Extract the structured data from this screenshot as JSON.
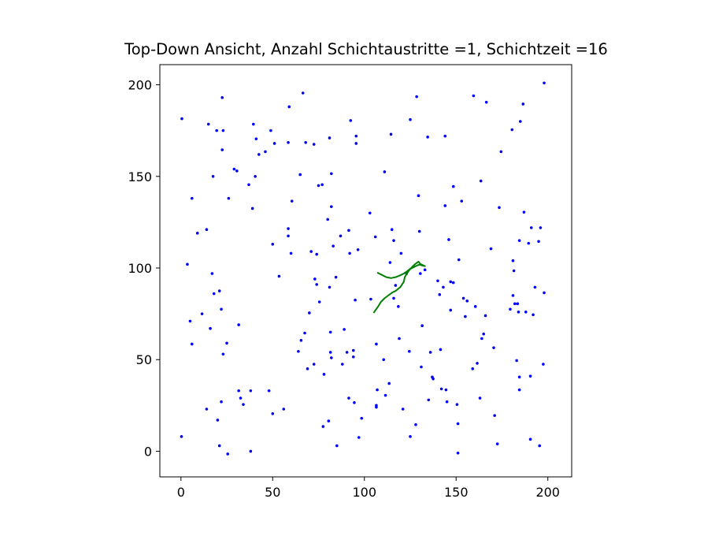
{
  "chart_data": {
    "type": "scatter",
    "title": "Top-Down Ansicht, Anzahl Schichtaustritte =1, Schichtzeit =16",
    "xlabel": "",
    "ylabel": "",
    "xlim": [
      -11.5,
      213
    ],
    "ylim": [
      -14,
      211
    ],
    "xticks": [
      0,
      50,
      100,
      150,
      200
    ],
    "yticks": [
      0,
      50,
      100,
      150,
      200
    ],
    "grid": false,
    "colors": {
      "points": "#0000ff",
      "path": "#008000"
    },
    "points": [
      [
        0.5,
        181.5
      ],
      [
        0.3,
        8
      ],
      [
        3.5,
        102
      ],
      [
        5,
        71
      ],
      [
        6,
        58.5
      ],
      [
        6,
        138
      ],
      [
        9,
        119
      ],
      [
        11.5,
        75
      ],
      [
        14,
        121
      ],
      [
        14,
        23
      ],
      [
        15,
        178.5
      ],
      [
        16,
        67
      ],
      [
        17,
        97
      ],
      [
        17.5,
        150
      ],
      [
        18,
        86
      ],
      [
        19.5,
        175
      ],
      [
        20,
        17
      ],
      [
        21,
        87.5
      ],
      [
        21,
        3
      ],
      [
        22,
        77.5
      ],
      [
        22,
        27
      ],
      [
        22.5,
        193
      ],
      [
        22.5,
        164.5
      ],
      [
        23,
        53
      ],
      [
        23,
        175
      ],
      [
        25,
        59
      ],
      [
        25.5,
        -1.5
      ],
      [
        26,
        138
      ],
      [
        29,
        154
      ],
      [
        30.5,
        153
      ],
      [
        31.5,
        69
      ],
      [
        31.5,
        33
      ],
      [
        32.5,
        29
      ],
      [
        34,
        25.5
      ],
      [
        37,
        145.5
      ],
      [
        38,
        0
      ],
      [
        38,
        33
      ],
      [
        39,
        132.5
      ],
      [
        39.5,
        178.5
      ],
      [
        40.5,
        150
      ],
      [
        41,
        170.5
      ],
      [
        42.5,
        162
      ],
      [
        46,
        163.5
      ],
      [
        48,
        33
      ],
      [
        49,
        175
      ],
      [
        50,
        113
      ],
      [
        50,
        20.5
      ],
      [
        51,
        168
      ],
      [
        53.5,
        95.5
      ],
      [
        56,
        23
      ],
      [
        58.5,
        121.5
      ],
      [
        58.5,
        117.5
      ],
      [
        58.5,
        168.5
      ],
      [
        59,
        188
      ],
      [
        60,
        108
      ],
      [
        60.5,
        136.5
      ],
      [
        64,
        54.5
      ],
      [
        65,
        151
      ],
      [
        65.5,
        60.5
      ],
      [
        66.5,
        195.5
      ],
      [
        67.5,
        64.5
      ],
      [
        68,
        168.5
      ],
      [
        69,
        45
      ],
      [
        70,
        75.5
      ],
      [
        71,
        109
      ],
      [
        72.5,
        167.5
      ],
      [
        72.5,
        47.5
      ],
      [
        73,
        94
      ],
      [
        74,
        91
      ],
      [
        74,
        107.5
      ],
      [
        75,
        145
      ],
      [
        75.5,
        81.5
      ],
      [
        77,
        145.5
      ],
      [
        77.5,
        13.5
      ],
      [
        78,
        42
      ],
      [
        80,
        126.5
      ],
      [
        80.5,
        16.5
      ],
      [
        81,
        171
      ],
      [
        81,
        89.5
      ],
      [
        81.5,
        65
      ],
      [
        81.5,
        54
      ],
      [
        82,
        51
      ],
      [
        82,
        133.5
      ],
      [
        82,
        151.5
      ],
      [
        83,
        112
      ],
      [
        84.5,
        95
      ],
      [
        85,
        3
      ],
      [
        87,
        117.5
      ],
      [
        88,
        47.5
      ],
      [
        89,
        66.5
      ],
      [
        90.5,
        54
      ],
      [
        91.5,
        29
      ],
      [
        91.5,
        120.5
      ],
      [
        92,
        108
      ],
      [
        92.5,
        180.5
      ],
      [
        94,
        55
      ],
      [
        94,
        51.5
      ],
      [
        94.5,
        26.5
      ],
      [
        95,
        82.5
      ],
      [
        95.5,
        168
      ],
      [
        95.5,
        172
      ],
      [
        96.5,
        110
      ],
      [
        97,
        7.5
      ],
      [
        98.5,
        18
      ],
      [
        103,
        130
      ],
      [
        103.5,
        83
      ],
      [
        106,
        117
      ],
      [
        106.5,
        58.5
      ],
      [
        106.5,
        25
      ],
      [
        106.5,
        24
      ],
      [
        107,
        33.5
      ],
      [
        110.5,
        50
      ],
      [
        111,
        152.5
      ],
      [
        111.5,
        30.5
      ],
      [
        113.5,
        37
      ],
      [
        114,
        103
      ],
      [
        114.5,
        173
      ],
      [
        115,
        121
      ],
      [
        116,
        115
      ],
      [
        116,
        83.5
      ],
      [
        117,
        90.5
      ],
      [
        118.5,
        79
      ],
      [
        119,
        61.5
      ],
      [
        120,
        108
      ],
      [
        121,
        23
      ],
      [
        123,
        97
      ],
      [
        124.5,
        54.5
      ],
      [
        125,
        181
      ],
      [
        125,
        8
      ],
      [
        128,
        14.5
      ],
      [
        128.5,
        193.5
      ],
      [
        129.5,
        139.5
      ],
      [
        130,
        120
      ],
      [
        130.5,
        97
      ],
      [
        131,
        46
      ],
      [
        131.5,
        68.5
      ],
      [
        133,
        99
      ],
      [
        134.5,
        171.5
      ],
      [
        135,
        28
      ],
      [
        136,
        54
      ],
      [
        137,
        40.5
      ],
      [
        137.5,
        39.5
      ],
      [
        140,
        93
      ],
      [
        141,
        85.5
      ],
      [
        141.5,
        55.5
      ],
      [
        142,
        34
      ],
      [
        143,
        89.5
      ],
      [
        144,
        134
      ],
      [
        144,
        172
      ],
      [
        144.5,
        33.5
      ],
      [
        145,
        27
      ],
      [
        146,
        115.5
      ],
      [
        147,
        92.5
      ],
      [
        147,
        77
      ],
      [
        148.5,
        144.5
      ],
      [
        148.5,
        92
      ],
      [
        150.5,
        25.5
      ],
      [
        151,
        15
      ],
      [
        151,
        -1
      ],
      [
        151.5,
        104.5
      ],
      [
        153,
        136.5
      ],
      [
        154,
        83.5
      ],
      [
        155,
        73.5
      ],
      [
        156,
        82
      ],
      [
        159,
        45
      ],
      [
        159.5,
        194
      ],
      [
        160.5,
        79
      ],
      [
        161.5,
        48
      ],
      [
        163,
        29
      ],
      [
        163.5,
        147.5
      ],
      [
        164,
        61.5
      ],
      [
        165,
        64
      ],
      [
        166,
        74
      ],
      [
        166.5,
        190.5
      ],
      [
        169,
        110.5
      ],
      [
        170.5,
        56.5
      ],
      [
        171,
        19.5
      ],
      [
        172.5,
        4
      ],
      [
        173.5,
        133
      ],
      [
        174.5,
        163.5
      ],
      [
        179.5,
        77.5
      ],
      [
        180.5,
        175.5
      ],
      [
        181,
        85
      ],
      [
        181,
        104
      ],
      [
        181.5,
        98.5
      ],
      [
        182,
        80.5
      ],
      [
        183,
        49.5
      ],
      [
        183.5,
        80.5
      ],
      [
        184,
        76
      ],
      [
        184.5,
        115
      ],
      [
        184.5,
        33.5
      ],
      [
        184.5,
        40.5
      ],
      [
        185,
        180
      ],
      [
        186.5,
        189.5
      ],
      [
        187,
        130.5
      ],
      [
        188,
        76
      ],
      [
        189.5,
        113.5
      ],
      [
        190.5,
        6.5
      ],
      [
        190.5,
        41
      ],
      [
        191,
        122
      ],
      [
        192,
        74.5
      ],
      [
        193,
        89.5
      ],
      [
        195,
        114.5
      ],
      [
        195.5,
        3
      ],
      [
        196,
        122
      ],
      [
        197.5,
        47.5
      ],
      [
        198,
        201
      ],
      [
        198,
        86.5
      ]
    ],
    "path": [
      [
        105,
        75.5
      ],
      [
        107.5,
        79
      ],
      [
        109,
        81.5
      ],
      [
        111,
        83.5
      ],
      [
        113,
        85
      ],
      [
        115,
        86.5
      ],
      [
        117,
        87.5
      ],
      [
        119.5,
        89.5
      ],
      [
        121.5,
        92.5
      ],
      [
        122,
        95
      ],
      [
        123.5,
        97.5
      ],
      [
        125,
        99.5
      ],
      [
        127,
        100.5
      ],
      [
        129,
        101.5
      ],
      [
        131,
        102
      ],
      [
        133,
        101
      ],
      [
        131,
        101.5
      ],
      [
        129.5,
        103.5
      ],
      [
        127.5,
        102
      ],
      [
        125.5,
        100
      ],
      [
        123,
        98
      ],
      [
        121.5,
        97
      ],
      [
        119.5,
        96
      ],
      [
        117,
        95
      ],
      [
        114.5,
        94.5
      ],
      [
        112,
        95
      ],
      [
        110,
        96
      ],
      [
        108,
        97
      ],
      [
        107,
        97.5
      ]
    ]
  }
}
